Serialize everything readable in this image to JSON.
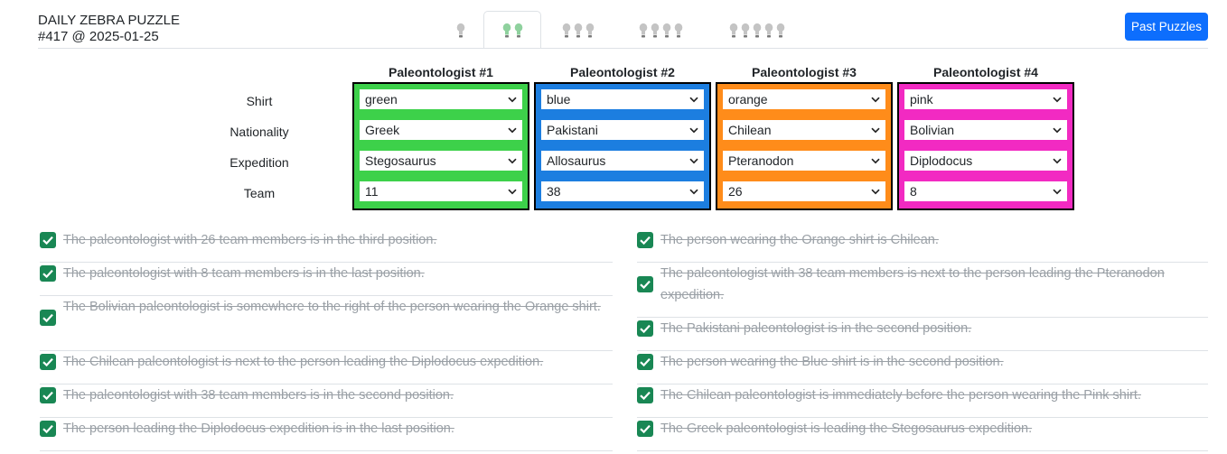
{
  "header": {
    "title": "DAILY ZEBRA PUZZLE",
    "subtitle": "#417 @ 2025-01-25",
    "past_button": "Past Puzzles",
    "tabs": [
      {
        "bulbs": 1,
        "active": false,
        "icon": "lightbulb-icon"
      },
      {
        "bulbs": 2,
        "active": true,
        "icon": "lightbulb-icon"
      },
      {
        "bulbs": 3,
        "active": false,
        "icon": "lightbulb-icon"
      },
      {
        "bulbs": 4,
        "active": false,
        "icon": "lightbulb-icon"
      },
      {
        "bulbs": 5,
        "active": false,
        "icon": "lightbulb-icon"
      }
    ]
  },
  "grid": {
    "row_labels": [
      "Shirt",
      "Nationality",
      "Expedition",
      "Team"
    ],
    "columns": [
      {
        "title": "Paleontologist #1",
        "color": "#3dd14a",
        "values": [
          "green",
          "Greek",
          "Stegosaurus",
          "11"
        ]
      },
      {
        "title": "Paleontologist #2",
        "color": "#1c7ee0",
        "values": [
          "blue",
          "Pakistani",
          "Allosaurus",
          "38"
        ]
      },
      {
        "title": "Paleontologist #3",
        "color": "#ff8c1a",
        "values": [
          "orange",
          "Chilean",
          "Pteranodon",
          "26"
        ]
      },
      {
        "title": "Paleontologist #4",
        "color": "#f22ac2",
        "values": [
          "pink",
          "Bolivian",
          "Diplodocus",
          "8"
        ]
      }
    ]
  },
  "clues": {
    "check_color": "#198754",
    "left": [
      "The paleontologist with 26 team members is in the third position.",
      "The paleontologist with 8 team members is in the last position.",
      "The Bolivian paleontologist is somewhere to the right of the person wearing the Orange shirt.",
      "The Chilean paleontologist is next to the person leading the Diplodocus expedition.",
      "The paleontologist with 38 team members is in the second position.",
      "The person leading the Diplodocus expedition is in the last position."
    ],
    "right": [
      "The person wearing the Orange shirt is Chilean.",
      "The paleontologist with 38 team members is next to the person leading the Pteranodon expedition.",
      "The Pakistani paleontologist is in the second position.",
      "The person wearing the Blue shirt is in the second position.",
      "The Chilean paleontologist is immediately before the person wearing the Pink shirt.",
      "The Greek paleontologist is leading the Stegosaurus expedition."
    ]
  }
}
